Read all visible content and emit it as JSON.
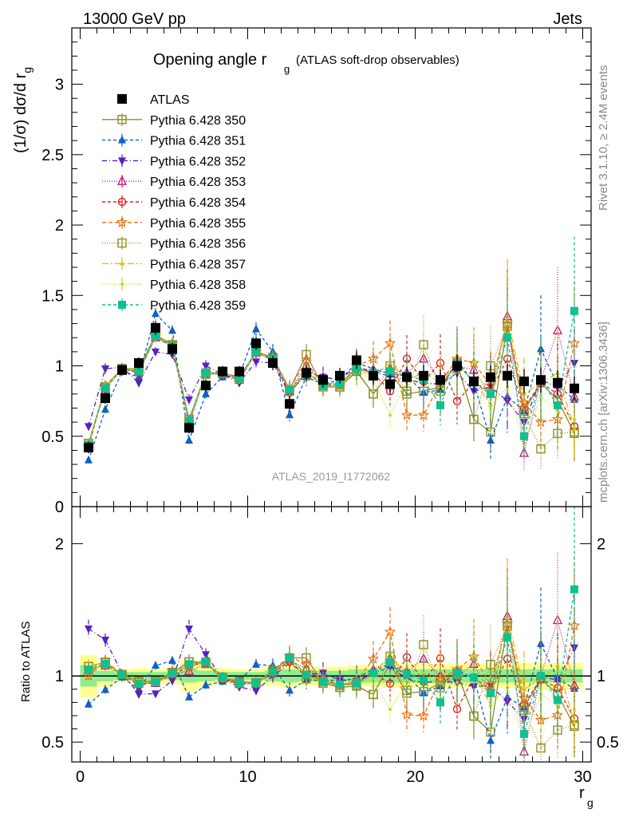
{
  "header": {
    "left": "13000 GeV pp",
    "right": "Jets",
    "title_main": "Opening angle r",
    "title_sub": "g",
    "title_note": "(ATLAS soft-drop observables)",
    "watermark": "ATLAS_2019_I1772062",
    "side_top": "Rivet 3.1.10, ≥ 2.4M events",
    "side_bottom": "mcplots.cern.ch [arXiv:1306.3436]"
  },
  "chart_data": {
    "type": "line",
    "xlabel": "r",
    "xlabel_sub": "g",
    "ylabel": "(1/σ) dσ/d r",
    "ylabel_sub": "g",
    "ratio_ylabel": "Ratio to ATLAS",
    "xlim": [
      -0.5,
      30.5
    ],
    "ylim": [
      0,
      3.4
    ],
    "ratio_ylim": [
      0.35,
      2.28
    ],
    "x_ticks": [
      "0",
      "10",
      "20",
      "30"
    ],
    "y_ticks": [
      "0",
      "0.5",
      "1",
      "1.5",
      "2",
      "2.5",
      "3"
    ],
    "ratio_ticks": [
      "0.5",
      "1",
      "2"
    ],
    "x": [
      0.5,
      1.5,
      2.5,
      3.5,
      4.5,
      5.5,
      6.5,
      7.5,
      8.5,
      9.5,
      10.5,
      11.5,
      12.5,
      13.5,
      14.5,
      15.5,
      16.5,
      17.5,
      18.5,
      19.5,
      20.5,
      21.5,
      22.5,
      23.5,
      24.5,
      25.5,
      26.5,
      27.5,
      28.5,
      29.5
    ],
    "data": {
      "name": "ATLAS",
      "values": [
        0.42,
        0.77,
        0.97,
        1.02,
        1.27,
        1.12,
        0.56,
        0.86,
        0.96,
        0.96,
        1.16,
        1.02,
        0.73,
        0.95,
        0.9,
        0.93,
        1.04,
        0.93,
        0.87,
        0.92,
        0.93,
        0.9,
        1.0,
        0.89,
        0.92,
        0.93,
        0.89,
        0.9,
        0.88,
        0.84
      ],
      "rel_err": [
        0.1,
        0.05,
        0.04,
        0.04,
        0.04,
        0.04,
        0.07,
        0.05,
        0.04,
        0.04,
        0.04,
        0.05,
        0.07,
        0.06,
        0.06,
        0.06,
        0.06,
        0.07,
        0.08,
        0.08,
        0.08,
        0.08,
        0.08,
        0.09,
        0.09,
        0.09,
        0.1,
        0.1,
        0.1,
        0.1
      ]
    },
    "band_inner": [
      0.08,
      0.04,
      0.03,
      0.03,
      0.03,
      0.03,
      0.05,
      0.04,
      0.03,
      0.03,
      0.03,
      0.04,
      0.05,
      0.04,
      0.04,
      0.04,
      0.05,
      0.05,
      0.05,
      0.05,
      0.05,
      0.05,
      0.05,
      0.05,
      0.05,
      0.05,
      0.05,
      0.05,
      0.05,
      0.05
    ],
    "band_outer": [
      0.16,
      0.08,
      0.05,
      0.06,
      0.05,
      0.06,
      0.12,
      0.08,
      0.06,
      0.05,
      0.05,
      0.07,
      0.09,
      0.07,
      0.07,
      0.07,
      0.08,
      0.08,
      0.09,
      0.09,
      0.09,
      0.09,
      0.09,
      0.09,
      0.09,
      0.09,
      0.1,
      0.1,
      0.1,
      0.1
    ],
    "series": [
      {
        "name": "Pythia 6.428 350",
        "color": "#8c8c30",
        "marker": "square-open",
        "dash": "",
        "values": [
          0.45,
          0.85,
          0.98,
          0.98,
          1.22,
          1.15,
          0.62,
          0.95,
          0.95,
          0.92,
          1.1,
          1.06,
          0.83,
          1.08,
          0.85,
          0.85,
          0.96,
          0.8,
          0.95,
          0.8,
          0.82,
          0.85,
          1.02,
          0.62,
          0.53,
          1.3,
          0.68,
          0.88,
          0.76,
          0.52
        ],
        "rel_err": [
          0.05,
          0.04,
          0.03,
          0.03,
          0.03,
          0.03,
          0.05,
          0.04,
          0.04,
          0.04,
          0.04,
          0.05,
          0.07,
          0.07,
          0.08,
          0.08,
          0.1,
          0.12,
          0.14,
          0.16,
          0.18,
          0.2,
          0.22,
          0.25,
          0.28,
          0.3,
          0.32,
          0.34,
          0.36,
          0.38
        ]
      },
      {
        "name": "Pythia 6.428 351",
        "color": "#1060c0",
        "marker": "triangle-up",
        "dash": "4,3",
        "values": [
          0.33,
          0.69,
          0.96,
          0.92,
          1.37,
          1.25,
          0.47,
          0.8,
          0.92,
          0.93,
          1.26,
          1.1,
          0.65,
          0.92,
          0.87,
          0.9,
          1.02,
          0.98,
          0.94,
          0.93,
          0.81,
          0.83,
          1.04,
          0.88,
          0.47,
          0.78,
          0.68,
          1.12,
          0.86,
          0.76
        ],
        "rel_err": [
          0.05,
          0.04,
          0.03,
          0.03,
          0.03,
          0.03,
          0.05,
          0.04,
          0.04,
          0.04,
          0.04,
          0.05,
          0.07,
          0.07,
          0.08,
          0.08,
          0.1,
          0.12,
          0.14,
          0.16,
          0.18,
          0.2,
          0.22,
          0.25,
          0.28,
          0.3,
          0.32,
          0.34,
          0.36,
          0.38
        ]
      },
      {
        "name": "Pythia 6.428 352",
        "color": "#5a20c0",
        "marker": "triangle-down",
        "dash": "6,3,1,3",
        "values": [
          0.57,
          0.98,
          0.99,
          0.88,
          1.1,
          1.08,
          0.76,
          1.0,
          0.94,
          0.88,
          1.03,
          1.02,
          0.8,
          0.96,
          0.92,
          0.9,
          1.0,
          0.95,
          0.93,
          0.9,
          0.88,
          0.87,
          0.95,
          0.82,
          0.85,
          0.75,
          0.6,
          0.9,
          0.85,
          1.02
        ],
        "rel_err": [
          0.05,
          0.04,
          0.03,
          0.03,
          0.03,
          0.03,
          0.05,
          0.04,
          0.04,
          0.04,
          0.04,
          0.05,
          0.07,
          0.07,
          0.08,
          0.08,
          0.1,
          0.12,
          0.14,
          0.16,
          0.18,
          0.2,
          0.22,
          0.25,
          0.28,
          0.3,
          0.32,
          0.34,
          0.36,
          0.38
        ]
      },
      {
        "name": "Pythia 6.428 353",
        "color": "#c01878",
        "marker": "triangle-open",
        "dash": "1,2",
        "values": [
          0.44,
          0.83,
          0.98,
          0.96,
          1.2,
          1.14,
          0.58,
          0.94,
          0.94,
          0.9,
          1.09,
          1.04,
          0.82,
          1.0,
          0.87,
          0.88,
          0.98,
          0.97,
          0.98,
          0.95,
          1.05,
          0.9,
          1.0,
          0.97,
          0.8,
          1.35,
          0.38,
          0.9,
          1.25,
          0.78
        ],
        "rel_err": [
          0.05,
          0.04,
          0.03,
          0.03,
          0.03,
          0.03,
          0.05,
          0.04,
          0.04,
          0.04,
          0.04,
          0.05,
          0.07,
          0.07,
          0.08,
          0.08,
          0.1,
          0.12,
          0.14,
          0.16,
          0.18,
          0.2,
          0.22,
          0.25,
          0.28,
          0.3,
          0.32,
          0.34,
          0.36,
          0.38
        ]
      },
      {
        "name": "Pythia 6.428 354",
        "color": "#e02020",
        "marker": "circle-open",
        "dash": "4,3",
        "values": [
          0.44,
          0.84,
          0.98,
          0.95,
          1.21,
          1.13,
          0.6,
          0.95,
          0.94,
          0.9,
          1.1,
          1.04,
          0.81,
          0.95,
          0.88,
          0.86,
          0.99,
          0.95,
          0.82,
          1.05,
          0.89,
          1.02,
          0.75,
          0.88,
          0.82,
          1.05,
          0.7,
          0.88,
          0.8,
          0.57
        ],
        "rel_err": [
          0.05,
          0.04,
          0.03,
          0.03,
          0.03,
          0.03,
          0.05,
          0.04,
          0.04,
          0.04,
          0.04,
          0.05,
          0.07,
          0.07,
          0.08,
          0.08,
          0.1,
          0.12,
          0.14,
          0.16,
          0.18,
          0.2,
          0.22,
          0.25,
          0.28,
          0.3,
          0.32,
          0.34,
          0.36,
          0.38
        ]
      },
      {
        "name": "Pythia 6.428 355",
        "color": "#f07010",
        "marker": "star",
        "dash": "5,3",
        "values": [
          0.42,
          0.86,
          0.98,
          0.96,
          1.21,
          1.16,
          0.6,
          0.95,
          0.95,
          0.91,
          1.1,
          1.06,
          0.84,
          1.03,
          0.86,
          0.86,
          1.0,
          1.05,
          1.16,
          0.65,
          0.65,
          0.88,
          1.05,
          1.02,
          0.86,
          1.3,
          0.74,
          0.6,
          0.62,
          1.16
        ],
        "rel_err": [
          0.05,
          0.04,
          0.03,
          0.03,
          0.03,
          0.03,
          0.05,
          0.04,
          0.04,
          0.04,
          0.04,
          0.05,
          0.07,
          0.07,
          0.08,
          0.08,
          0.1,
          0.12,
          0.14,
          0.16,
          0.18,
          0.2,
          0.22,
          0.25,
          0.28,
          0.3,
          0.32,
          0.34,
          0.36,
          0.38
        ]
      },
      {
        "name": "Pythia 6.428 356",
        "color": "#909020",
        "marker": "square-open",
        "dash": "1,2",
        "values": [
          0.45,
          0.85,
          0.98,
          0.97,
          1.22,
          1.15,
          0.62,
          0.94,
          0.95,
          0.91,
          1.1,
          1.06,
          0.82,
          0.93,
          0.86,
          0.85,
          0.97,
          0.8,
          1.0,
          0.82,
          1.15,
          0.82,
          1.01,
          0.62,
          1.0,
          1.28,
          0.66,
          0.41,
          0.52,
          0.53
        ],
        "rel_err": [
          0.05,
          0.04,
          0.03,
          0.03,
          0.03,
          0.03,
          0.05,
          0.04,
          0.04,
          0.04,
          0.04,
          0.05,
          0.07,
          0.07,
          0.08,
          0.08,
          0.1,
          0.12,
          0.14,
          0.16,
          0.18,
          0.2,
          0.22,
          0.25,
          0.28,
          0.3,
          0.32,
          0.34,
          0.36,
          0.38
        ]
      },
      {
        "name": "Pythia 6.428 357",
        "color": "#d8c010",
        "marker": "tri-small",
        "dash": "8,3,2,3",
        "values": [
          0.45,
          0.85,
          0.98,
          0.97,
          1.21,
          1.14,
          0.61,
          0.95,
          0.95,
          0.91,
          1.1,
          1.05,
          0.83,
          0.96,
          0.86,
          0.86,
          0.98,
          0.93,
          1.02,
          0.9,
          0.95,
          0.88,
          1.0,
          0.9,
          0.72,
          1.35,
          0.8,
          0.88,
          0.95,
          0.55
        ],
        "rel_err": [
          0.05,
          0.04,
          0.03,
          0.03,
          0.03,
          0.03,
          0.05,
          0.04,
          0.04,
          0.04,
          0.04,
          0.05,
          0.07,
          0.07,
          0.08,
          0.08,
          0.1,
          0.12,
          0.14,
          0.16,
          0.18,
          0.2,
          0.22,
          0.25,
          0.28,
          0.3,
          0.32,
          0.34,
          0.36,
          0.38
        ]
      },
      {
        "name": "Pythia 6.428 358",
        "color": "#b8e020",
        "marker": "dot",
        "dash": "1,2",
        "values": [
          0.44,
          0.84,
          0.98,
          0.97,
          1.21,
          1.14,
          0.61,
          0.94,
          0.95,
          0.91,
          1.09,
          1.05,
          0.83,
          0.95,
          0.86,
          0.86,
          0.97,
          0.9,
          0.65,
          0.88,
          0.88,
          0.85,
          0.95,
          1.02,
          0.72,
          0.85,
          0.45,
          0.78,
          0.68,
          0.62
        ],
        "rel_err": [
          0.05,
          0.04,
          0.03,
          0.03,
          0.03,
          0.03,
          0.05,
          0.04,
          0.04,
          0.04,
          0.04,
          0.05,
          0.07,
          0.07,
          0.08,
          0.08,
          0.1,
          0.12,
          0.14,
          0.16,
          0.18,
          0.2,
          0.22,
          0.25,
          0.28,
          0.3,
          0.32,
          0.34,
          0.36,
          0.38
        ]
      },
      {
        "name": "Pythia 6.428 359",
        "color": "#10c090",
        "marker": "square-filled",
        "dash": "4,3",
        "values": [
          0.44,
          0.84,
          0.98,
          0.96,
          1.21,
          1.14,
          0.61,
          0.95,
          0.95,
          0.91,
          1.1,
          1.05,
          0.83,
          0.96,
          0.86,
          0.87,
          0.98,
          0.95,
          0.96,
          0.93,
          0.9,
          0.72,
          1.02,
          0.88,
          0.8,
          1.2,
          0.5,
          0.9,
          0.72,
          1.39
        ],
        "rel_err": [
          0.05,
          0.04,
          0.03,
          0.03,
          0.03,
          0.03,
          0.05,
          0.04,
          0.04,
          0.04,
          0.04,
          0.05,
          0.07,
          0.07,
          0.08,
          0.08,
          0.1,
          0.12,
          0.14,
          0.16,
          0.18,
          0.2,
          0.22,
          0.25,
          0.28,
          0.3,
          0.32,
          0.34,
          0.36,
          0.38
        ]
      }
    ]
  }
}
